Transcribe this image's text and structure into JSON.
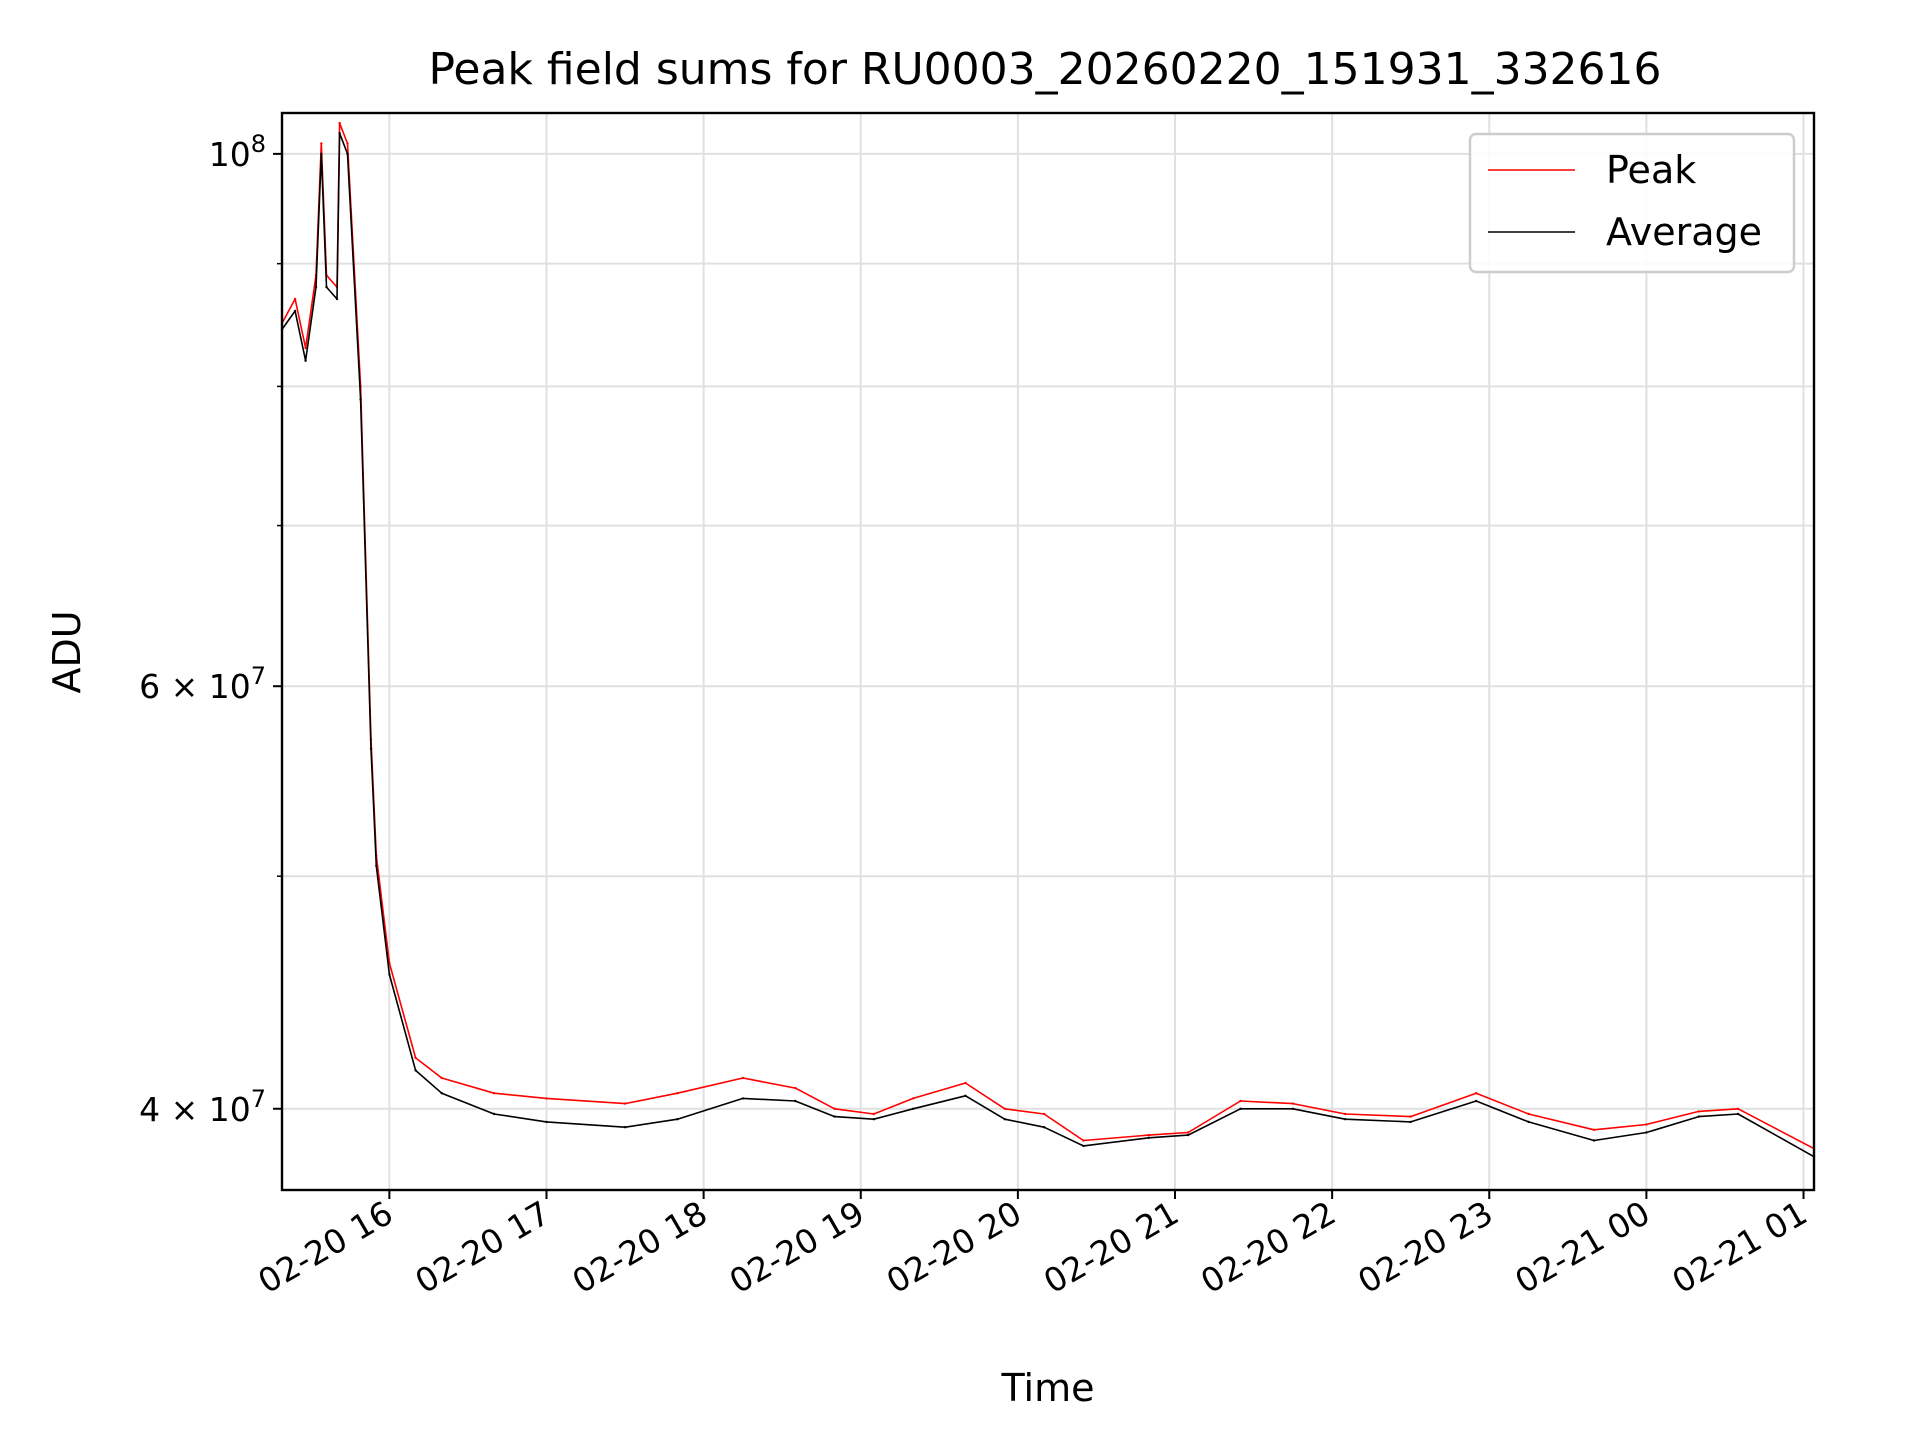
{
  "chart_data": {
    "type": "line",
    "title": "Peak field sums for RU0003_20260220_151931_332616",
    "xlabel": "Time",
    "ylabel": "ADU",
    "y_scale": "log",
    "ylim": [
      37000000,
      104000000
    ],
    "xlim": [
      "2026-02-20 15:19",
      "2026-02-21 01:04"
    ],
    "grid": true,
    "legend_placement": "top-right",
    "x_ticks": [
      {
        "value": "2026-02-20 16:00",
        "label": "02-20 16"
      },
      {
        "value": "2026-02-20 17:00",
        "label": "02-20 17"
      },
      {
        "value": "2026-02-20 18:00",
        "label": "02-20 18"
      },
      {
        "value": "2026-02-20 19:00",
        "label": "02-20 19"
      },
      {
        "value": "2026-02-20 20:00",
        "label": "02-20 20"
      },
      {
        "value": "2026-02-20 21:00",
        "label": "02-20 21"
      },
      {
        "value": "2026-02-20 22:00",
        "label": "02-20 22"
      },
      {
        "value": "2026-02-20 23:00",
        "label": "02-20 23"
      },
      {
        "value": "2026-02-21 00:00",
        "label": "02-21 00"
      },
      {
        "value": "2026-02-21 01:00",
        "label": "02-21 01"
      }
    ],
    "y_ticks_major": [
      {
        "value": 100000000,
        "label": "10",
        "exp": "8"
      },
      {
        "value": 60000000,
        "label": "6 × 10",
        "exp": "7"
      },
      {
        "value": 40000000,
        "label": "4 × 10",
        "exp": "7"
      }
    ],
    "y_ticks_minor": [
      90000000,
      80000000,
      70000000,
      50000000
    ],
    "series": [
      {
        "name": "Peak",
        "color": "#ff0000",
        "points": [
          [
            "2026-02-20 15:19",
            85000000
          ],
          [
            "2026-02-20 15:24",
            87000000
          ],
          [
            "2026-02-20 15:28",
            83000000
          ],
          [
            "2026-02-20 15:32",
            89000000
          ],
          [
            "2026-02-20 15:34",
            101000000
          ],
          [
            "2026-02-20 15:36",
            89000000
          ],
          [
            "2026-02-20 15:40",
            88000000
          ],
          [
            "2026-02-20 15:41",
            103000000
          ],
          [
            "2026-02-20 15:44",
            101000000
          ],
          [
            "2026-02-20 15:49",
            80000000
          ],
          [
            "2026-02-20 15:53",
            57000000
          ],
          [
            "2026-02-20 15:55",
            51000000
          ],
          [
            "2026-02-20 16:00",
            46000000
          ],
          [
            "2026-02-20 16:10",
            42000000
          ],
          [
            "2026-02-20 16:20",
            41200000
          ],
          [
            "2026-02-20 16:40",
            40600000
          ],
          [
            "2026-02-20 17:00",
            40400000
          ],
          [
            "2026-02-20 17:30",
            40200000
          ],
          [
            "2026-02-20 17:50",
            40600000
          ],
          [
            "2026-02-20 18:15",
            41200000
          ],
          [
            "2026-02-20 18:35",
            40800000
          ],
          [
            "2026-02-20 18:50",
            40000000
          ],
          [
            "2026-02-20 19:05",
            39800000
          ],
          [
            "2026-02-20 19:20",
            40400000
          ],
          [
            "2026-02-20 19:40",
            41000000
          ],
          [
            "2026-02-20 19:55",
            40000000
          ],
          [
            "2026-02-20 20:10",
            39800000
          ],
          [
            "2026-02-20 20:25",
            38800000
          ],
          [
            "2026-02-20 20:50",
            39000000
          ],
          [
            "2026-02-20 21:05",
            39100000
          ],
          [
            "2026-02-20 21:25",
            40300000
          ],
          [
            "2026-02-20 21:45",
            40200000
          ],
          [
            "2026-02-20 22:05",
            39800000
          ],
          [
            "2026-02-20 22:30",
            39700000
          ],
          [
            "2026-02-20 22:55",
            40600000
          ],
          [
            "2026-02-20 23:15",
            39800000
          ],
          [
            "2026-02-20 23:40",
            39200000
          ],
          [
            "2026-02-21 00:00",
            39400000
          ],
          [
            "2026-02-21 00:20",
            39900000
          ],
          [
            "2026-02-21 00:35",
            40000000
          ],
          [
            "2026-02-21 01:04",
            38500000
          ]
        ]
      },
      {
        "name": "Average",
        "color": "#000000",
        "points": [
          [
            "2026-02-20 15:19",
            84500000
          ],
          [
            "2026-02-20 15:24",
            86000000
          ],
          [
            "2026-02-20 15:28",
            82000000
          ],
          [
            "2026-02-20 15:32",
            88000000
          ],
          [
            "2026-02-20 15:34",
            100000000
          ],
          [
            "2026-02-20 15:36",
            88000000
          ],
          [
            "2026-02-20 15:40",
            87000000
          ],
          [
            "2026-02-20 15:41",
            102000000
          ],
          [
            "2026-02-20 15:44",
            100000000
          ],
          [
            "2026-02-20 15:49",
            79000000
          ],
          [
            "2026-02-20 15:53",
            56500000
          ],
          [
            "2026-02-20 15:55",
            50500000
          ],
          [
            "2026-02-20 16:00",
            45500000
          ],
          [
            "2026-02-20 16:10",
            41500000
          ],
          [
            "2026-02-20 16:20",
            40600000
          ],
          [
            "2026-02-20 16:40",
            39800000
          ],
          [
            "2026-02-20 17:00",
            39500000
          ],
          [
            "2026-02-20 17:30",
            39300000
          ],
          [
            "2026-02-20 17:50",
            39600000
          ],
          [
            "2026-02-20 18:15",
            40400000
          ],
          [
            "2026-02-20 18:35",
            40300000
          ],
          [
            "2026-02-20 18:50",
            39700000
          ],
          [
            "2026-02-20 19:05",
            39600000
          ],
          [
            "2026-02-20 19:20",
            40000000
          ],
          [
            "2026-02-20 19:40",
            40500000
          ],
          [
            "2026-02-20 19:55",
            39600000
          ],
          [
            "2026-02-20 20:10",
            39300000
          ],
          [
            "2026-02-20 20:25",
            38600000
          ],
          [
            "2026-02-20 20:50",
            38900000
          ],
          [
            "2026-02-20 21:05",
            39000000
          ],
          [
            "2026-02-20 21:25",
            40000000
          ],
          [
            "2026-02-20 21:45",
            40000000
          ],
          [
            "2026-02-20 22:05",
            39600000
          ],
          [
            "2026-02-20 22:30",
            39500000
          ],
          [
            "2026-02-20 22:55",
            40300000
          ],
          [
            "2026-02-20 23:15",
            39500000
          ],
          [
            "2026-02-20 23:40",
            38800000
          ],
          [
            "2026-02-21 00:00",
            39100000
          ],
          [
            "2026-02-21 00:20",
            39700000
          ],
          [
            "2026-02-21 00:35",
            39800000
          ],
          [
            "2026-02-21 01:04",
            38200000
          ]
        ]
      }
    ]
  }
}
